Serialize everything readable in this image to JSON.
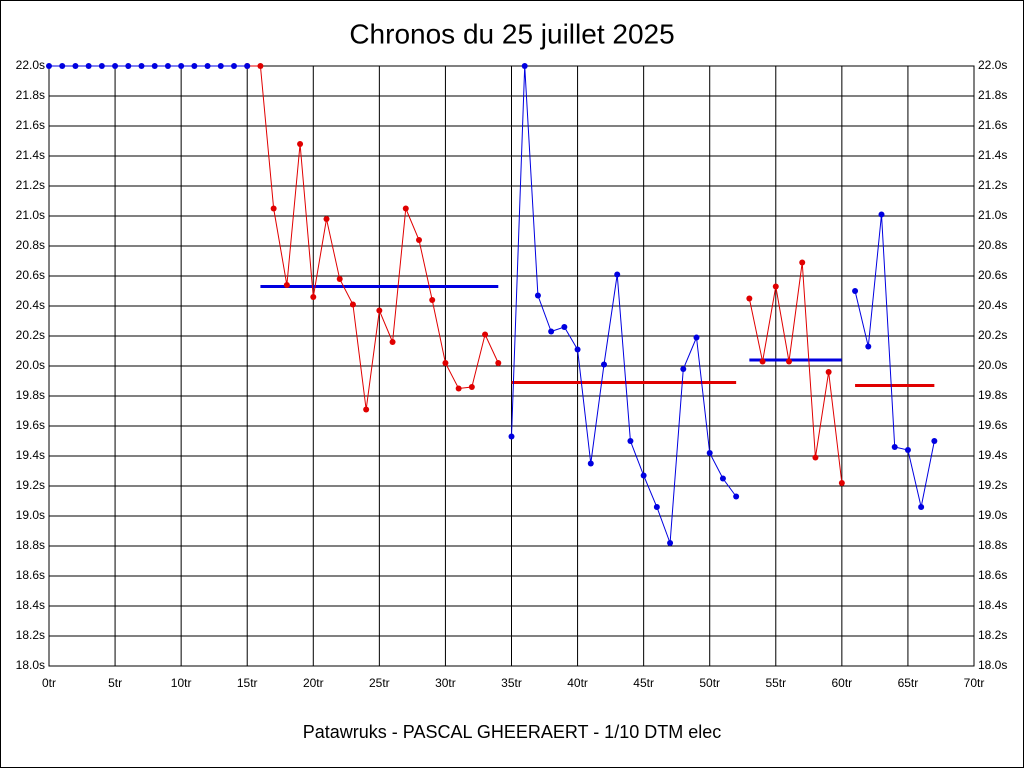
{
  "chart_data": {
    "type": "line",
    "title": "Chronos du 25 juillet 2025",
    "subtitle": "Patawruks - PASCAL GHEERAERT - 1/10 DTM elec",
    "xlim": [
      0,
      70
    ],
    "xticks": [
      {
        "value": 0,
        "label": "0tr"
      },
      {
        "value": 5,
        "label": "5tr"
      },
      {
        "value": 10,
        "label": "10tr"
      },
      {
        "value": 15,
        "label": "15tr"
      },
      {
        "value": 20,
        "label": "20tr"
      },
      {
        "value": 25,
        "label": "25tr"
      },
      {
        "value": 30,
        "label": "30tr"
      },
      {
        "value": 35,
        "label": "35tr"
      },
      {
        "value": 40,
        "label": "40tr"
      },
      {
        "value": 45,
        "label": "45tr"
      },
      {
        "value": 50,
        "label": "50tr"
      },
      {
        "value": 55,
        "label": "55tr"
      },
      {
        "value": 60,
        "label": "60tr"
      },
      {
        "value": 65,
        "label": "65tr"
      },
      {
        "value": 70,
        "label": "70tr"
      }
    ],
    "ylim": [
      18.0,
      22.0
    ],
    "yticks": [
      {
        "value": 18.0,
        "label": "18.0s"
      },
      {
        "value": 18.2,
        "label": "18.2s"
      },
      {
        "value": 18.4,
        "label": "18.4s"
      },
      {
        "value": 18.6,
        "label": "18.6s"
      },
      {
        "value": 18.8,
        "label": "18.8s"
      },
      {
        "value": 19.0,
        "label": "19.0s"
      },
      {
        "value": 19.2,
        "label": "19.2s"
      },
      {
        "value": 19.4,
        "label": "19.4s"
      },
      {
        "value": 19.6,
        "label": "19.6s"
      },
      {
        "value": 19.8,
        "label": "19.8s"
      },
      {
        "value": 20.0,
        "label": "20.0s"
      },
      {
        "value": 20.2,
        "label": "20.2s"
      },
      {
        "value": 20.4,
        "label": "20.4s"
      },
      {
        "value": 20.6,
        "label": "20.6s"
      },
      {
        "value": 20.8,
        "label": "20.8s"
      },
      {
        "value": 21.0,
        "label": "21.0s"
      },
      {
        "value": 21.2,
        "label": "21.2s"
      },
      {
        "value": 21.4,
        "label": "21.4s"
      },
      {
        "value": 21.6,
        "label": "21.6s"
      },
      {
        "value": 21.8,
        "label": "21.8s"
      },
      {
        "value": 22.0,
        "label": "22.0s"
      }
    ],
    "grid": true,
    "series": [
      {
        "color": "#e00000",
        "x": [
          15,
          16,
          17,
          18,
          19,
          20,
          21,
          22,
          23,
          24,
          25,
          26,
          27,
          28,
          29,
          30,
          31,
          32,
          33,
          34
        ],
        "values": [
          22.0,
          22.0,
          21.05,
          20.54,
          21.48,
          20.46,
          20.98,
          20.58,
          20.41,
          19.71,
          20.37,
          20.16,
          21.05,
          20.84,
          20.44,
          20.02,
          19.85,
          19.86,
          20.21,
          20.02
        ]
      },
      {
        "color": "#0000e0",
        "x": [
          0,
          1,
          2,
          3,
          4,
          5,
          6,
          7,
          8,
          9,
          10,
          11,
          12,
          13,
          14,
          15
        ],
        "values": [
          22.0,
          22.0,
          22.0,
          22.0,
          22.0,
          22.0,
          22.0,
          22.0,
          22.0,
          22.0,
          22.0,
          22.0,
          22.0,
          22.0,
          22.0,
          22.0
        ]
      },
      {
        "color": "#0000e0",
        "x": [
          35,
          36,
          37,
          38,
          39,
          40,
          41,
          42,
          43,
          44,
          45,
          46,
          47,
          48,
          49,
          50,
          51,
          52
        ],
        "values": [
          19.53,
          22.0,
          20.47,
          20.23,
          20.26,
          20.11,
          19.35,
          20.01,
          20.61,
          19.5,
          19.27,
          19.06,
          18.82,
          19.98,
          20.19,
          19.42,
          19.25,
          19.13
        ]
      },
      {
        "color": "#e00000",
        "x": [
          53,
          54,
          55,
          56,
          57,
          58,
          59,
          60
        ],
        "values": [
          20.45,
          20.03,
          20.53,
          20.03,
          20.69,
          19.39,
          19.96,
          19.22
        ]
      },
      {
        "color": "#0000e0",
        "x": [
          61,
          62,
          63,
          64,
          65,
          66,
          67
        ],
        "values": [
          20.5,
          20.13,
          21.01,
          19.46,
          19.44,
          19.06,
          19.5
        ]
      }
    ],
    "averages": [
      {
        "color": "#0000e0",
        "x": [
          16,
          34
        ],
        "value": 20.53
      },
      {
        "color": "#e00000",
        "x": [
          35,
          52
        ],
        "value": 19.89
      },
      {
        "color": "#0000e0",
        "x": [
          53,
          60
        ],
        "value": 20.04
      },
      {
        "color": "#e00000",
        "x": [
          61,
          67
        ],
        "value": 19.87
      }
    ]
  }
}
